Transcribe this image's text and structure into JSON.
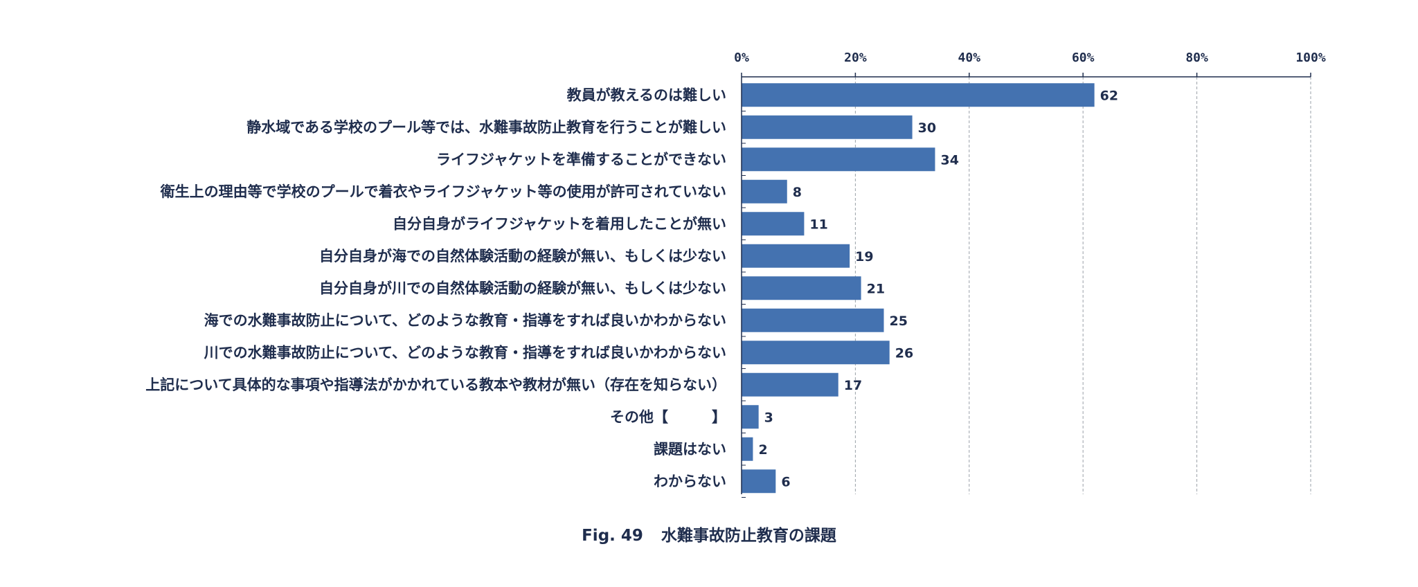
{
  "chart_data": {
    "type": "bar",
    "orientation": "horizontal",
    "categories": [
      "教員が教えるのは難しい",
      "静水域である学校のプール等では、水難事故防止教育を行うことが難しい",
      "ライフジャケットを準備することができない",
      "衛生上の理由等で学校のプールで着衣やライフジャケット等の使用が許可されていない",
      "自分自身がライフジャケットを着用したことが無い",
      "自分自身が海での自然体験活動の経験が無い、もしくは少ない",
      "自分自身が川での自然体験活動の経験が無い、もしくは少ない",
      "海での水難事故防止について、どのような教育・指導をすれば良いかわからない",
      "川での水難事故防止について、どのような教育・指導をすれば良いかわからない",
      "上記について具体的な事項や指導法がかかれている教本や教材が無い（存在を知らない）",
      "その他【　　　】",
      "課題はない",
      "わからない"
    ],
    "values": [
      62,
      30,
      34,
      8,
      11,
      19,
      21,
      25,
      26,
      17,
      3,
      2,
      6
    ],
    "x_ticks": [
      "0%",
      "20%",
      "40%",
      "60%",
      "80%",
      "100%"
    ],
    "xlim": [
      0,
      100
    ],
    "grid": "vertical dashed",
    "axis_position": "top",
    "bar_color": "#4472b0"
  },
  "caption": {
    "number": "Fig. 49",
    "title": "水難事故防止教育の課題"
  }
}
